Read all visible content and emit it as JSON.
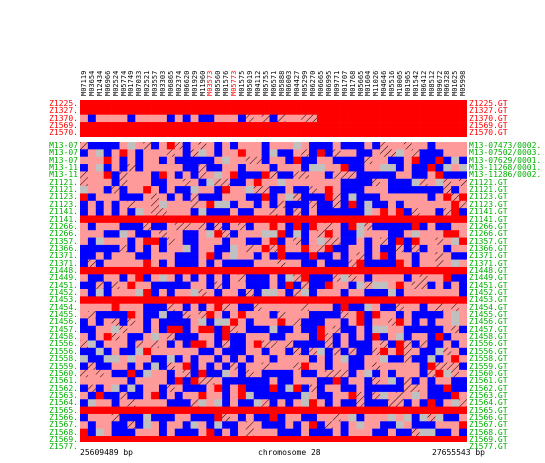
{
  "markers": [
    "M07119",
    "M03654",
    "M12434",
    "M06966",
    "M02524",
    "M05774",
    "M01749",
    "M07033",
    "M02521",
    "M03557",
    "M03303",
    "M06865",
    "M02374",
    "M06620",
    "M01929",
    "M11960",
    "M03573",
    "M05560",
    "M01576",
    "M05773",
    "M01575",
    "M05019",
    "M04112",
    "M05755",
    "M06571",
    "M05888",
    "M06003",
    "M04427",
    "M05299",
    "M06270",
    "M06665",
    "M06995",
    "M09771",
    "M01707",
    "M01768",
    "M05665",
    "M01604",
    "M11026",
    "M04646",
    "M05516",
    "M10005",
    "M01965",
    "M01542",
    "M06412",
    "M08512",
    "M09672",
    "M06328",
    "M01625",
    "M05998"
  ],
  "highlighted_markers": [
    "M03573",
    "M05773"
  ],
  "top_rows": [
    {
      "left": "Z1225.",
      "right": "Z1225.GT"
    },
    {
      "left": "Z1327.",
      "right": "Z1327.GT"
    },
    {
      "left": "Z1370.",
      "right": "Z1370.GT"
    },
    {
      "left": "Z1569.",
      "right": "Z1569.GT"
    },
    {
      "left": "Z1570.",
      "right": "Z1570.GT"
    }
  ],
  "bottom_rows": [
    {
      "left": "M13-07",
      "right": "M13-07473/0002."
    },
    {
      "left": "M13-07",
      "right": "M13-07502/0003."
    },
    {
      "left": "M13-07",
      "right": "M13-07629/0001."
    },
    {
      "left": "M13-11",
      "right": "M13-11268/0001."
    },
    {
      "left": "M13-11",
      "right": "M13-11286/0002."
    },
    {
      "left": "Z1121.",
      "right": "Z1121.GT"
    },
    {
      "left": "Z1121.",
      "right": "Z1121.GT"
    },
    {
      "left": "Z1123.",
      "right": "Z1123.GT"
    },
    {
      "left": "Z1123.",
      "right": "Z1123.GT"
    },
    {
      "left": "Z1141.",
      "right": "Z1141.GT"
    },
    {
      "left": "Z1141.",
      "right": "Z1141.GT"
    },
    {
      "left": "Z1266.",
      "right": "Z1266.GT"
    },
    {
      "left": "Z1266.",
      "right": "Z1266.GT"
    },
    {
      "left": "Z1357.",
      "right": "Z1357.GT"
    },
    {
      "left": "Z1366.",
      "right": "Z1366.GT"
    },
    {
      "left": "Z1371.",
      "right": "Z1371.GT"
    },
    {
      "left": "Z1371.",
      "right": "Z1371.GT"
    },
    {
      "left": "Z1448.",
      "right": "Z1448.GT"
    },
    {
      "left": "Z1449.",
      "right": "Z1449.GT"
    },
    {
      "left": "Z1451.",
      "right": "Z1451.GT"
    },
    {
      "left": "Z1452.",
      "right": "Z1452.GT"
    },
    {
      "left": "Z1453.",
      "right": "Z1453.GT"
    },
    {
      "left": "Z1454.",
      "right": "Z1454.GT"
    },
    {
      "left": "Z1455.",
      "right": "Z1455.GT"
    },
    {
      "left": "Z1456.",
      "right": "Z1456.GT"
    },
    {
      "left": "Z1457.",
      "right": "Z1457.GT"
    },
    {
      "left": "Z1458.",
      "right": "Z1458.GT"
    },
    {
      "left": "Z1556.",
      "right": "Z1556.GT"
    },
    {
      "left": "Z1556.",
      "right": "Z1556.GT"
    },
    {
      "left": "Z1558.",
      "right": "Z1558.GT"
    },
    {
      "left": "Z1559.",
      "right": "Z1559.GT"
    },
    {
      "left": "Z1560.",
      "right": "Z1560.GT"
    },
    {
      "left": "Z1561.",
      "right": "Z1561.GT"
    },
    {
      "left": "Z1562.",
      "right": "Z1562.GT"
    },
    {
      "left": "Z1563.",
      "right": "Z1563.GT"
    },
    {
      "left": "Z1564.",
      "right": "Z1564.GT"
    },
    {
      "left": "Z1565.",
      "right": "Z1565.GT"
    },
    {
      "left": "Z1566.",
      "right": "Z1566.GT"
    },
    {
      "left": "Z1567.",
      "right": "Z1567.GT"
    },
    {
      "left": "Z1568.",
      "right": "Z1568.GT"
    },
    {
      "left": "Z1569.",
      "right": "Z1569.GT"
    },
    {
      "left": "Z1577.",
      "right": "Z1577.GT"
    }
  ],
  "axis": {
    "start": "25609489 bp",
    "chromosome": "chromosome 28",
    "end": "27655543 bp"
  },
  "colors": {
    "dark_red": "#ff0000",
    "light_red": "#ff9a9a",
    "blue": "#0000ff",
    "gray": "#c0c0c0",
    "label_red": "#ff0000",
    "label_green": "#00b000"
  }
}
